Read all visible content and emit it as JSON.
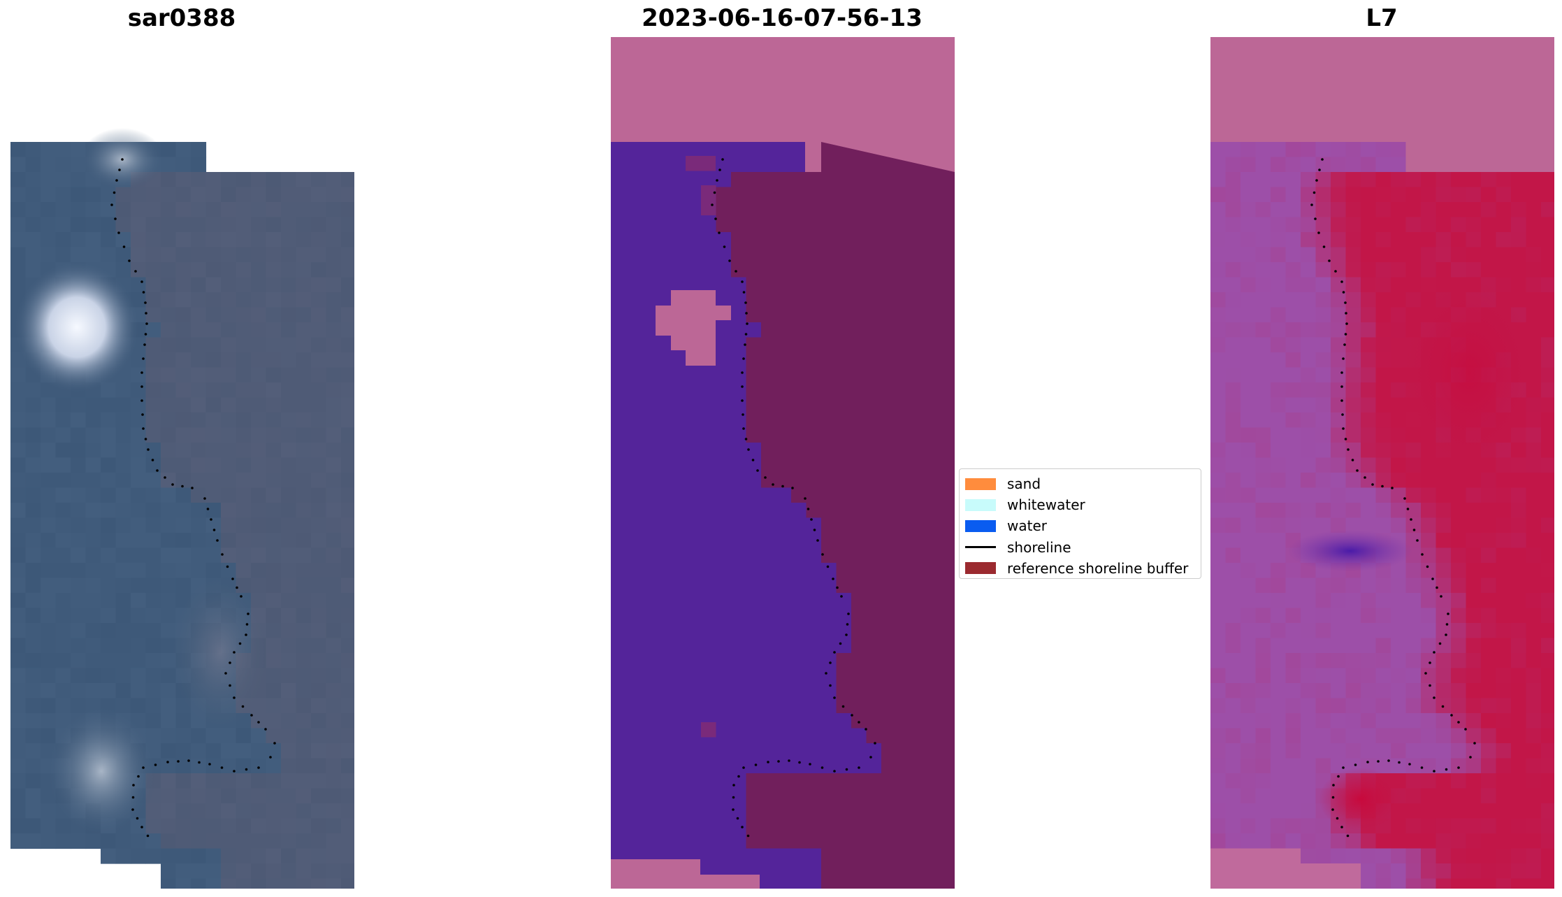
{
  "panels": {
    "left": {
      "title": "sar0388",
      "image": "rgb-satellite-image"
    },
    "middle": {
      "title": "2023-06-16-07-56-13",
      "image": "classification-overlay"
    },
    "right": {
      "title": "L7",
      "image": "band-composite-image"
    }
  },
  "legend": {
    "items": [
      {
        "label": "sand",
        "kind": "patch",
        "color": "#ff8c3d"
      },
      {
        "label": "whitewater",
        "kind": "patch",
        "color": "#c8fbfb"
      },
      {
        "label": "water",
        "kind": "patch",
        "color": "#0a5cf0"
      },
      {
        "label": "shoreline",
        "kind": "line",
        "color": "#000000"
      },
      {
        "label": "reference shoreline buffer",
        "kind": "patch",
        "color": "#9b2a2f"
      }
    ]
  },
  "colors": {
    "nodata": "#bc6796",
    "water_class": "#54249a",
    "buffer_class": "#711f5c",
    "rgb_water": "#3d5878",
    "rgb_cloud": "#eef3ff",
    "l7_land": "#c21648",
    "l7_water": "#9d4fa8"
  }
}
